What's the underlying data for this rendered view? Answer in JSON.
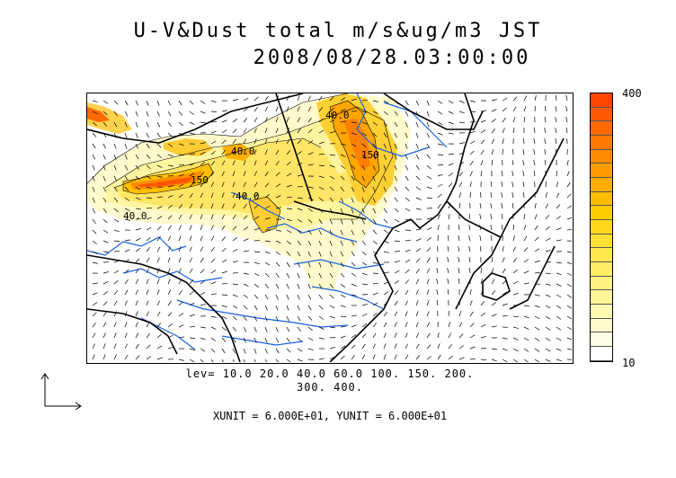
{
  "title": {
    "line1": "U-V&Dust total m/s&ug/m3 JST",
    "line2": "2008/08/28.03:00:00"
  },
  "colorbar": {
    "max_label": "400",
    "min_label": "10",
    "colors": [
      "#ff4500",
      "#ff5a00",
      "#ff6a00",
      "#ff7a00",
      "#ff8c00",
      "#ff9c00",
      "#ffad00",
      "#ffbd00",
      "#ffcc00",
      "#ffd81a",
      "#ffe033",
      "#ffe84d",
      "#ffee66",
      "#fff280",
      "#fff599",
      "#fff8b3",
      "#fffacc",
      "#fffde5",
      "#ffffff"
    ]
  },
  "contour_labels": [
    "40.0",
    "40.0",
    "150",
    "150",
    "40.0",
    "40.0"
  ],
  "levels": {
    "line1": "lev= 10.0 20.0 40.0 60.0 100. 150. 200.",
    "line2": "300. 400."
  },
  "units_text": "XUNIT = 6.000E+01, YUNIT = 6.000E+01",
  "colors": {
    "river": "#1560e0",
    "coast": "#000000",
    "vector": "#000000"
  }
}
